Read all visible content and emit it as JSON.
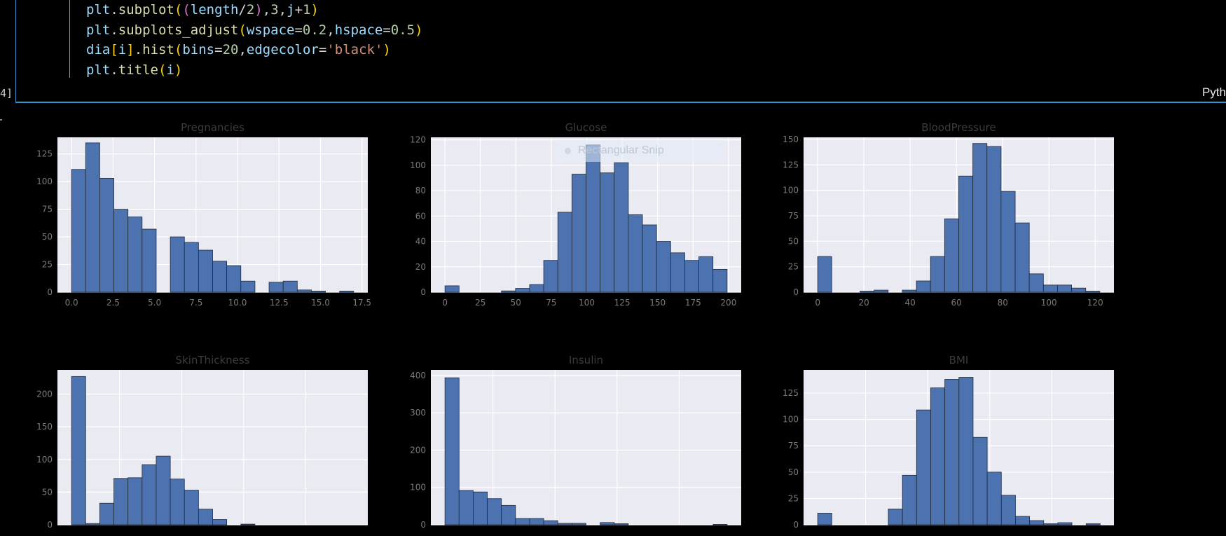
{
  "code": {
    "lines": [
      [
        [
          "plt",
          "id"
        ],
        [
          ".",
          "op"
        ],
        [
          "subplot",
          "fn"
        ],
        [
          "(",
          "p1"
        ],
        [
          "(",
          "p2"
        ],
        [
          "length",
          "id"
        ],
        [
          "/",
          "op"
        ],
        [
          "2",
          "num"
        ],
        [
          ")",
          "p2"
        ],
        [
          ",",
          "op"
        ],
        [
          "3",
          "num"
        ],
        [
          ",",
          "op"
        ],
        [
          "j",
          "id"
        ],
        [
          "+",
          "op"
        ],
        [
          "1",
          "num"
        ],
        [
          ")",
          "p1"
        ]
      ],
      [
        [
          "plt",
          "id"
        ],
        [
          ".",
          "op"
        ],
        [
          "subplots_adjust",
          "fn"
        ],
        [
          "(",
          "p1"
        ],
        [
          "wspace",
          "id"
        ],
        [
          "=",
          "op"
        ],
        [
          "0.2",
          "num"
        ],
        [
          ",",
          "op"
        ],
        [
          "hspace",
          "id"
        ],
        [
          "=",
          "op"
        ],
        [
          "0.5",
          "num"
        ],
        [
          ")",
          "p1"
        ]
      ],
      [
        [
          "dia",
          "id"
        ],
        [
          "[",
          "p1"
        ],
        [
          "i",
          "id"
        ],
        [
          "]",
          "p1"
        ],
        [
          ".",
          "op"
        ],
        [
          "hist",
          "fn"
        ],
        [
          "(",
          "p1"
        ],
        [
          "bins",
          "id"
        ],
        [
          "=",
          "op"
        ],
        [
          "20",
          "num"
        ],
        [
          ",",
          "op"
        ],
        [
          "edgecolor",
          "id"
        ],
        [
          "=",
          "op"
        ],
        [
          "'black'",
          "str"
        ],
        [
          ")",
          "p1"
        ]
      ],
      [
        [
          "plt",
          "id"
        ],
        [
          ".",
          "op"
        ],
        [
          "title",
          "fn"
        ],
        [
          "(",
          "p1"
        ],
        [
          "i",
          "id"
        ],
        [
          ")",
          "p1"
        ]
      ]
    ],
    "execution_count": "4]",
    "language": "Pyth"
  },
  "snip_overlay": {
    "label": "Rectangular Snip"
  },
  "colors": {
    "bar": "#4c72b0",
    "plot_bg": "#eaeaf2",
    "grid": "#ffffff",
    "title": "#3c3c3c",
    "tick": "#7a7a7a",
    "cell_border": "#3794c8"
  },
  "chart_data": [
    {
      "type": "bar",
      "title": "Pregnancies",
      "xlim": [
        -0.85,
        17.85
      ],
      "ylim": [
        0,
        140
      ],
      "xticks": [
        0,
        2.5,
        5,
        7.5,
        10,
        12.5,
        15,
        17.5
      ],
      "xtick_labels": [
        "0.0",
        "2.5",
        "5.0",
        "7.5",
        "10.0",
        "12.5",
        "15.0",
        "17.5"
      ],
      "yticks": [
        0,
        25,
        50,
        75,
        100,
        125
      ],
      "bin_start": 0,
      "bin_width": 0.85,
      "values": [
        111,
        135,
        103,
        75,
        68,
        57,
        0,
        50,
        45,
        38,
        28,
        24,
        10,
        0,
        9,
        10,
        2,
        1,
        0,
        1
      ]
    },
    {
      "type": "bar",
      "title": "Glucose",
      "xlim": [
        -9.95,
        208.95
      ],
      "ylim": [
        0,
        122
      ],
      "xticks": [
        0,
        25,
        50,
        75,
        100,
        125,
        150,
        175,
        200
      ],
      "xtick_labels": [
        "0",
        "25",
        "50",
        "75",
        "100",
        "125",
        "150",
        "175",
        "200"
      ],
      "yticks": [
        0,
        20,
        40,
        60,
        80,
        100,
        120
      ],
      "bin_start": 0,
      "bin_width": 9.95,
      "values": [
        5,
        0,
        0,
        0,
        1,
        3,
        6,
        25,
        63,
        93,
        116,
        94,
        102,
        61,
        53,
        40,
        31,
        25,
        28,
        18
      ]
    },
    {
      "type": "bar",
      "title": "BloodPressure",
      "xlim": [
        -6.1,
        128.1
      ],
      "ylim": [
        0,
        152
      ],
      "xticks": [
        0,
        20,
        40,
        60,
        80,
        100,
        120
      ],
      "xtick_labels": [
        "0",
        "20",
        "40",
        "60",
        "80",
        "100",
        "120"
      ],
      "yticks": [
        0,
        25,
        50,
        75,
        100,
        125,
        150
      ],
      "bin_start": 0,
      "bin_width": 6.1,
      "values": [
        35,
        0,
        0,
        1,
        2,
        0,
        2,
        11,
        35,
        72,
        114,
        146,
        143,
        99,
        68,
        18,
        7,
        7,
        4,
        1
      ]
    },
    {
      "type": "bar",
      "title": "SkinThickness",
      "xlim": [
        -4.95,
        103.95
      ],
      "ylim": [
        0,
        237
      ],
      "xticks": [],
      "xtick_labels": [],
      "yticks": [
        0,
        50,
        100,
        150,
        200
      ],
      "bin_start": 0,
      "bin_width": 4.95,
      "values": [
        227,
        2,
        33,
        71,
        72,
        92,
        105,
        70,
        53,
        24,
        8,
        0,
        1,
        0,
        0,
        0,
        0,
        0,
        0,
        0
      ]
    },
    {
      "type": "bar",
      "title": "Insulin",
      "xlim": [
        -42.3,
        888.3
      ],
      "ylim": [
        0,
        415
      ],
      "xticks": [],
      "xtick_labels": [],
      "yticks": [
        0,
        100,
        200,
        300,
        400
      ],
      "bin_start": 0,
      "bin_width": 42.3,
      "values": [
        394,
        92,
        88,
        70,
        52,
        17,
        17,
        11,
        4,
        4,
        0,
        6,
        3,
        0,
        0,
        0,
        0,
        0,
        0,
        1
      ]
    },
    {
      "type": "bar",
      "title": "BMI",
      "xlim": [
        -3.36,
        70.46
      ],
      "ylim": [
        0,
        147
      ],
      "xticks": [],
      "xtick_labels": [],
      "yticks": [
        0,
        25,
        50,
        75,
        100,
        125
      ],
      "bin_start": 0,
      "bin_width": 3.36,
      "values": [
        11,
        0,
        0,
        0,
        0,
        15,
        47,
        109,
        130,
        138,
        140,
        83,
        50,
        28,
        8,
        4,
        1,
        2,
        0,
        1
      ]
    }
  ]
}
